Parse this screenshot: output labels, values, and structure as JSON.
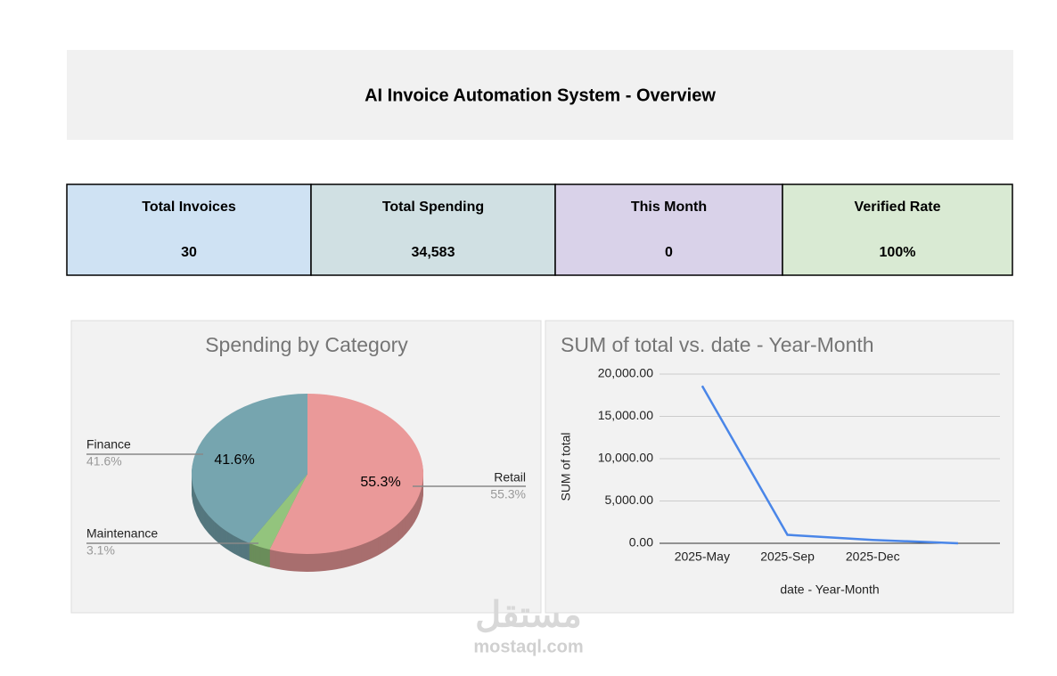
{
  "header": {
    "title": "AI Invoice Automation System - Overview"
  },
  "kpis": [
    {
      "label": "Total Invoices",
      "value": "30",
      "color": "#cfe2f3"
    },
    {
      "label": "Total Spending",
      "value": "34,583",
      "color": "#d0e0e3"
    },
    {
      "label": "This Month",
      "value": "0",
      "color": "#d9d2e9"
    },
    {
      "label": "Verified Rate",
      "value": "100%",
      "color": "#d9ead3"
    }
  ],
  "chart_data": [
    {
      "type": "pie",
      "title": "Spending by Category",
      "categories": [
        "Finance",
        "Maintenance",
        "Retail"
      ],
      "values": [
        41.6,
        3.1,
        55.3
      ],
      "value_labels": [
        "41.6%",
        "3.1%",
        "55.3%"
      ],
      "colors": [
        "#76a5af",
        "#93c47d",
        "#ea9999"
      ]
    },
    {
      "type": "line",
      "title": "SUM of total vs. date - Year-Month",
      "x_label": "date - Year-Month",
      "y_label": "SUM of total",
      "categories": [
        "2025-May",
        "2025-Sep",
        "2025-Dec",
        null
      ],
      "series": [
        {
          "name": "SUM of total",
          "color": "#4a86e8",
          "values": [
            18600,
            1000,
            400,
            0
          ]
        }
      ],
      "ylim": [
        0,
        20000
      ],
      "yticks": [
        {
          "value": 0,
          "label": "0.00"
        },
        {
          "value": 5000,
          "label": "5,000.00"
        },
        {
          "value": 10000,
          "label": "10,000.00"
        },
        {
          "value": 15000,
          "label": "15,000.00"
        },
        {
          "value": 20000,
          "label": "20,000.00"
        }
      ],
      "grid": true
    }
  ],
  "watermark": {
    "arabic": "مستقل",
    "latin": "mostaql.com"
  }
}
